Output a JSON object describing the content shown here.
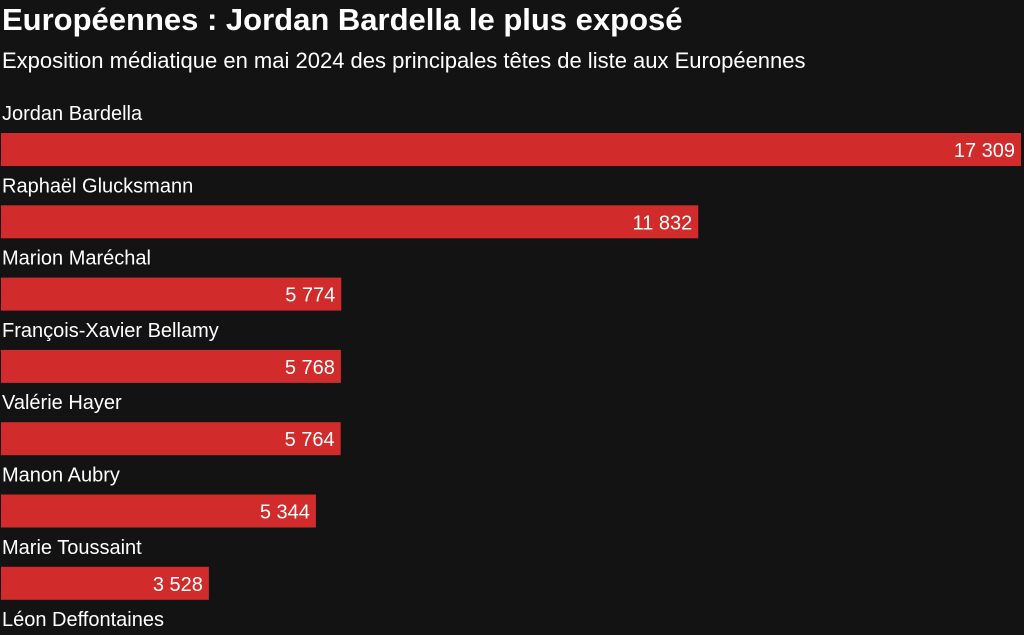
{
  "chart_data": {
    "type": "bar",
    "orientation": "horizontal",
    "title": "Européennes : Jordan Bardella le plus exposé",
    "subtitle": "Exposition médiatique en mai 2024 des principales têtes de liste aux Européennes",
    "categories": [
      "Jordan Bardella",
      "Raphaël Glucksmann",
      "Marion Maréchal",
      "François-Xavier Bellamy",
      "Valérie Hayer",
      "Manon Aubry",
      "Marie Toussaint",
      "Léon Deffontaines"
    ],
    "values": [
      17309,
      11832,
      5774,
      5768,
      5764,
      5344,
      3528,
      null
    ],
    "value_labels": [
      "17 309",
      "11 832",
      "5 774",
      "5 768",
      "5 764",
      "5 344",
      "3 528",
      ""
    ],
    "bar_color": "#d22b2b",
    "background_color": "#141314",
    "xlim": [
      0,
      17309
    ],
    "grid": false,
    "legend": "none"
  }
}
